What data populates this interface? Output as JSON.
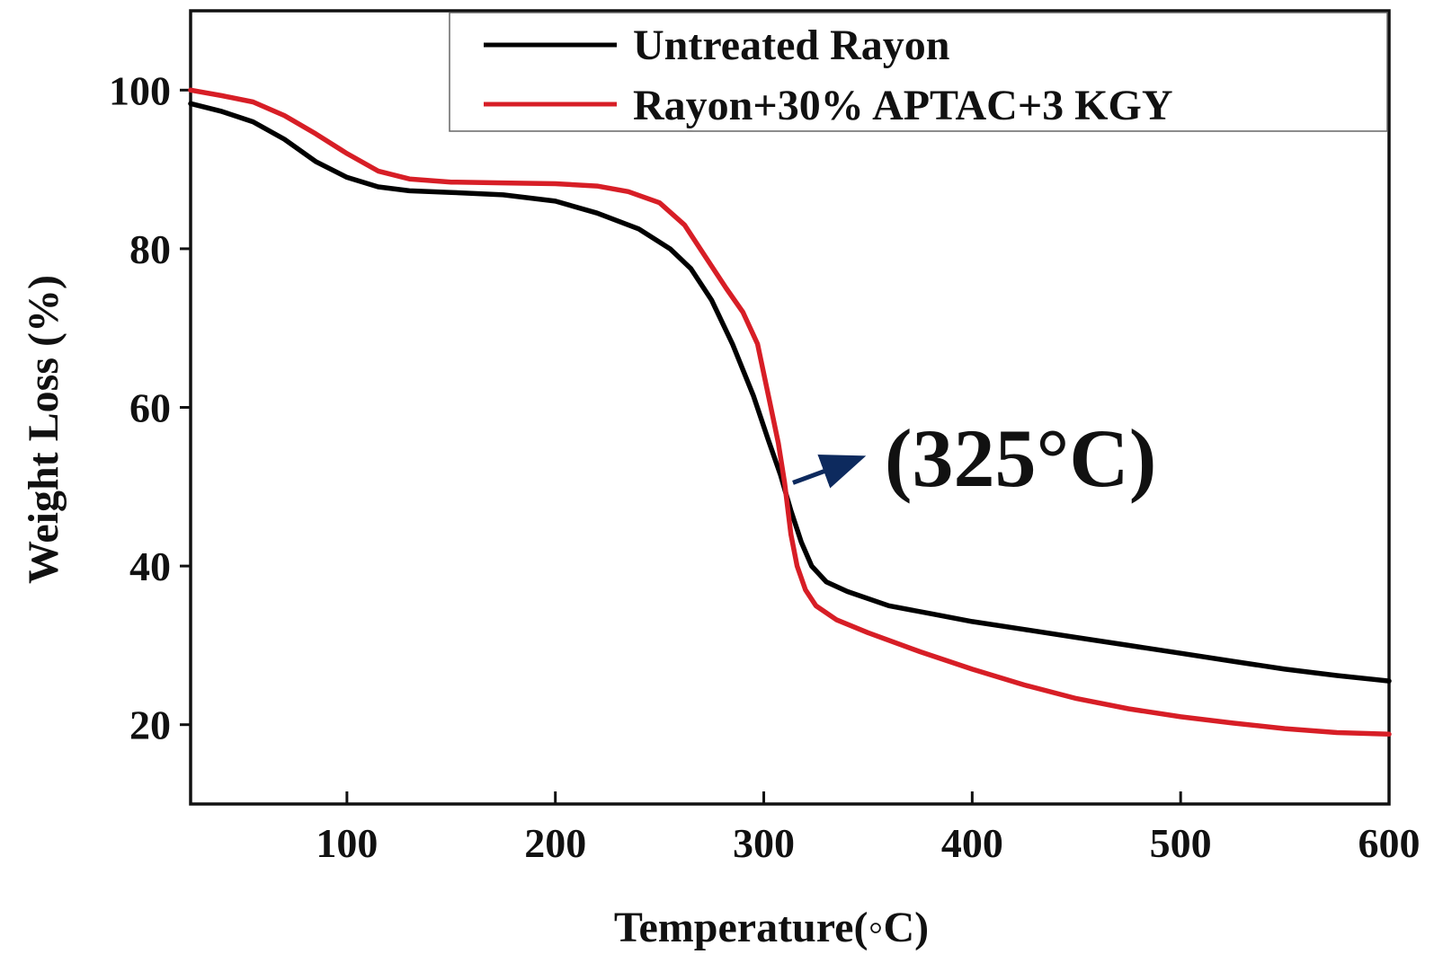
{
  "chart_data": {
    "type": "line",
    "title": "",
    "xlabel": "Temperature(◦C)",
    "ylabel": "Weight Loss (%)",
    "xlim": [
      25,
      600
    ],
    "ylim": [
      10,
      110
    ],
    "xticks": [
      100,
      200,
      300,
      400,
      500,
      600
    ],
    "yticks": [
      20,
      40,
      60,
      80,
      100
    ],
    "xtick_labels": [
      "100",
      "200",
      "300",
      "400",
      "500",
      "600"
    ],
    "ytick_labels": [
      "20",
      "40",
      "60",
      "80",
      "100"
    ],
    "grid": false,
    "legend_position": "top-right",
    "series": [
      {
        "name": "Untreated Rayon",
        "color": "#000000",
        "points": [
          [
            25,
            98.3
          ],
          [
            40,
            97.3
          ],
          [
            55,
            96.0
          ],
          [
            70,
            93.8
          ],
          [
            85,
            91.0
          ],
          [
            100,
            89.0
          ],
          [
            115,
            87.8
          ],
          [
            130,
            87.3
          ],
          [
            150,
            87.1
          ],
          [
            175,
            86.8
          ],
          [
            200,
            86.0
          ],
          [
            220,
            84.5
          ],
          [
            240,
            82.5
          ],
          [
            255,
            80.0
          ],
          [
            265,
            77.5
          ],
          [
            275,
            73.5
          ],
          [
            285,
            68.0
          ],
          [
            295,
            61.5
          ],
          [
            302,
            56.0
          ],
          [
            308,
            51.5
          ],
          [
            313,
            47.0
          ],
          [
            318,
            43.0
          ],
          [
            323,
            40.0
          ],
          [
            330,
            38.0
          ],
          [
            340,
            36.8
          ],
          [
            360,
            35.0
          ],
          [
            380,
            34.0
          ],
          [
            400,
            33.0
          ],
          [
            425,
            32.0
          ],
          [
            450,
            31.0
          ],
          [
            475,
            30.0
          ],
          [
            500,
            29.0
          ],
          [
            525,
            28.0
          ],
          [
            550,
            27.0
          ],
          [
            575,
            26.2
          ],
          [
            600,
            25.5
          ]
        ]
      },
      {
        "name": "Rayon+30% APTAC+3 KGY",
        "color": "#d71e26",
        "points": [
          [
            25,
            100.0
          ],
          [
            40,
            99.3
          ],
          [
            55,
            98.5
          ],
          [
            70,
            96.8
          ],
          [
            85,
            94.5
          ],
          [
            100,
            92.0
          ],
          [
            115,
            89.8
          ],
          [
            130,
            88.8
          ],
          [
            150,
            88.4
          ],
          [
            175,
            88.3
          ],
          [
            200,
            88.2
          ],
          [
            220,
            87.9
          ],
          [
            235,
            87.2
          ],
          [
            250,
            85.8
          ],
          [
            262,
            83.0
          ],
          [
            272,
            79.0
          ],
          [
            282,
            75.0
          ],
          [
            290,
            72.0
          ],
          [
            297,
            68.0
          ],
          [
            303,
            60.5
          ],
          [
            307,
            55.5
          ],
          [
            310,
            50.5
          ],
          [
            313,
            44.0
          ],
          [
            316,
            40.0
          ],
          [
            320,
            37.0
          ],
          [
            325,
            35.0
          ],
          [
            335,
            33.2
          ],
          [
            350,
            31.6
          ],
          [
            375,
            29.2
          ],
          [
            400,
            27.0
          ],
          [
            425,
            25.0
          ],
          [
            450,
            23.3
          ],
          [
            475,
            22.0
          ],
          [
            500,
            21.0
          ],
          [
            525,
            20.2
          ],
          [
            550,
            19.5
          ],
          [
            575,
            19.0
          ],
          [
            600,
            18.8
          ]
        ]
      }
    ],
    "annotations": [
      {
        "text": "(325°C)",
        "arrow_from": [
          314,
          50.5
        ],
        "arrow_to": [
          345,
          53.5
        ],
        "color": "#0d2a5e"
      }
    ]
  }
}
